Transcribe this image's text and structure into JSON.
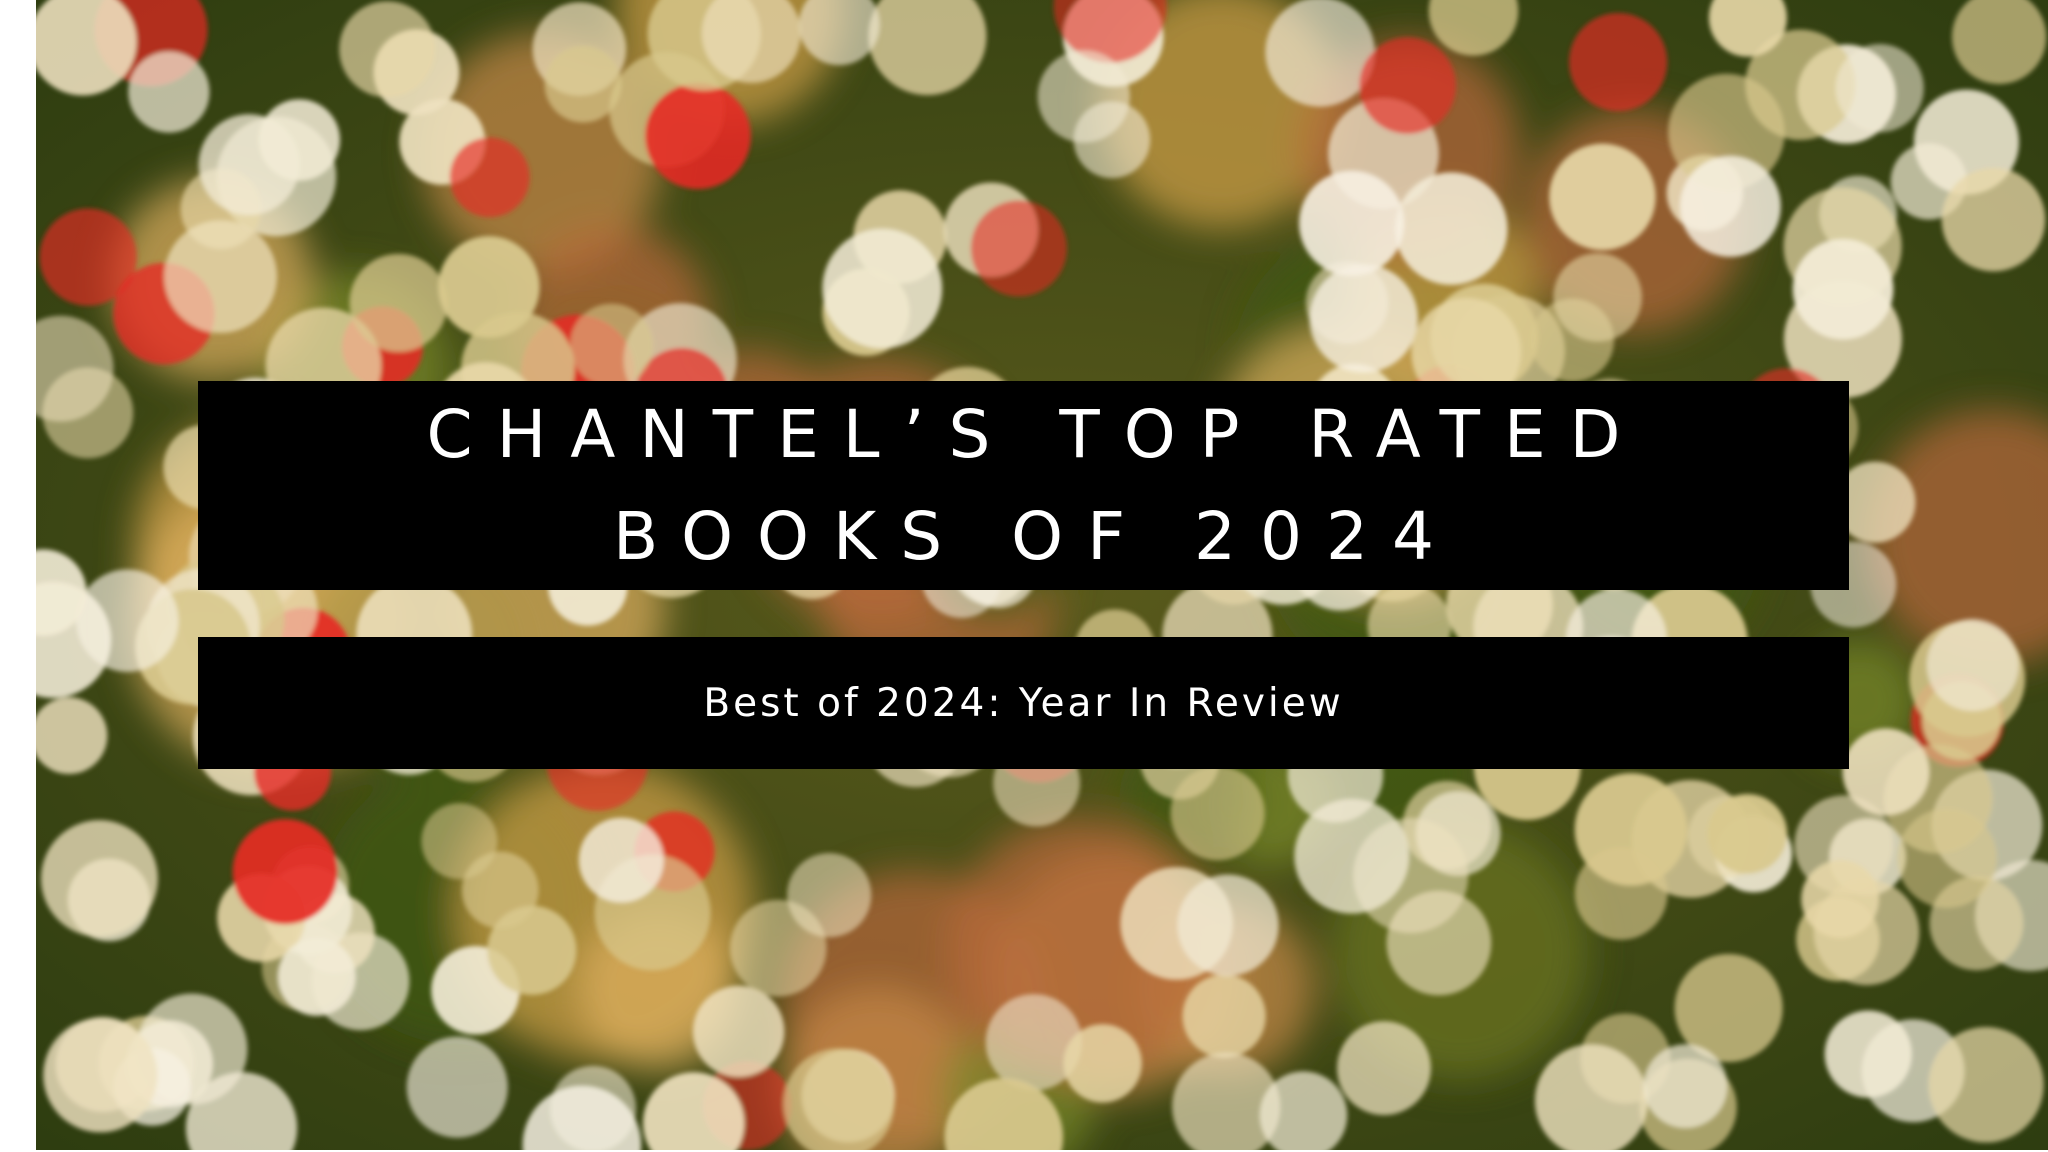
{
  "banner": {
    "title_lines": [
      "CHANTEL’S TOP RATED",
      "BOOKS OF 2024"
    ],
    "subtitle": "Best of 2024: Year In Review"
  }
}
